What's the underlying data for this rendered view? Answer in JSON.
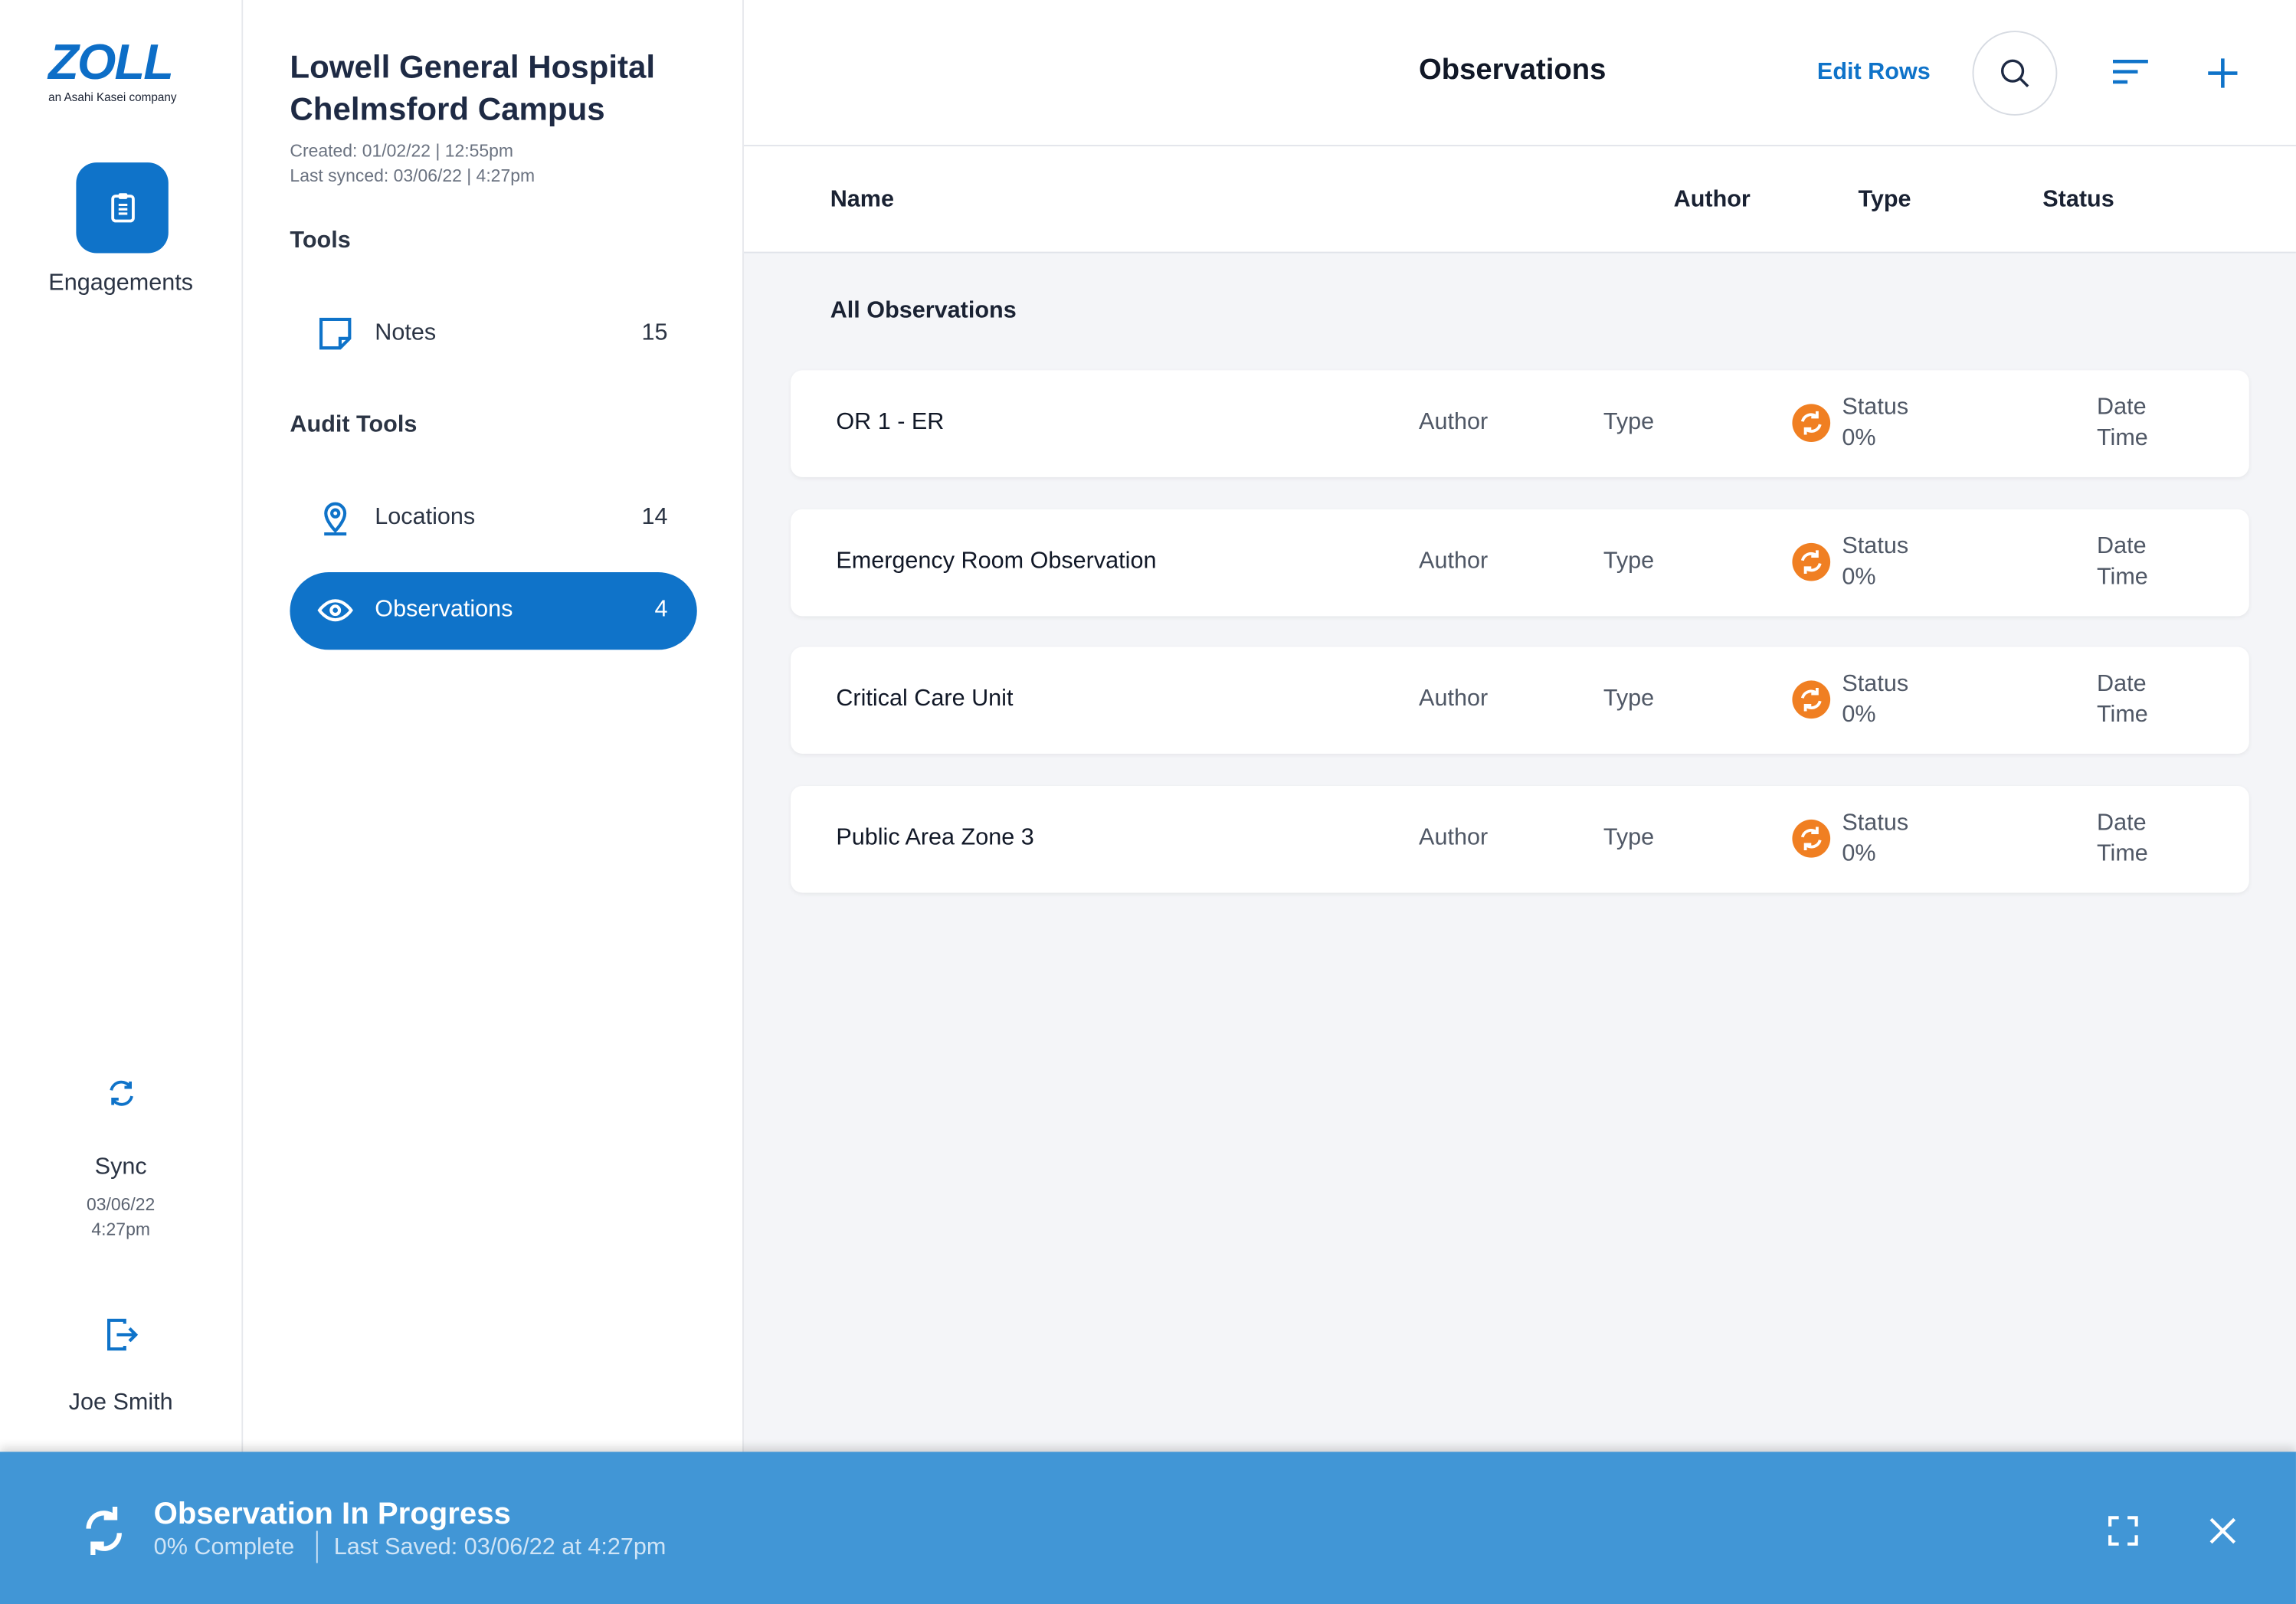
{
  "logo": {
    "brand": "ZOLL",
    "tagline": "an Asahi Kasei company"
  },
  "nav": {
    "engagements": "Engagements",
    "sync": {
      "label": "Sync",
      "date": "03/06/22",
      "time": "4:27pm"
    },
    "user": "Joe Smith"
  },
  "sidebar": {
    "title_line1": "Lowell General Hospital",
    "title_line2": "Chelmsford Campus",
    "created": "Created: 01/02/22 | 12:55pm",
    "synced": "Last synced: 03/06/22 | 4:27pm",
    "sections": [
      {
        "heading": "Tools",
        "items": [
          {
            "label": "Notes",
            "count": 15
          }
        ]
      },
      {
        "heading": "Audit Tools",
        "items": [
          {
            "label": "Locations",
            "count": 14
          },
          {
            "label": "Observations",
            "count": 4
          }
        ]
      }
    ]
  },
  "header": {
    "title": "Observations",
    "edit_rows": "Edit Rows"
  },
  "table": {
    "columns": [
      "Name",
      "Author",
      "Type",
      "Status"
    ],
    "group": "All Observations",
    "rows": [
      {
        "name": "OR 1 - ER",
        "author": "Author",
        "type": "Type",
        "status": "Status",
        "progress": "0%",
        "date": "Date",
        "time": "Time"
      },
      {
        "name": "Emergency Room Observation",
        "author": "Author",
        "type": "Type",
        "status": "Status",
        "progress": "0%",
        "date": "Date",
        "time": "Time"
      },
      {
        "name": "Critical Care Unit",
        "author": "Author",
        "type": "Type",
        "status": "Status",
        "progress": "0%",
        "date": "Date",
        "time": "Time"
      },
      {
        "name": "Public Area Zone 3",
        "author": "Author",
        "type": "Type",
        "status": "Status",
        "progress": "0%",
        "date": "Date",
        "time": "Time"
      }
    ]
  },
  "banner": {
    "title": "Observation In Progress",
    "complete": "0% Complete",
    "saved": "Last Saved: 03/06/22 at 4:27pm"
  }
}
